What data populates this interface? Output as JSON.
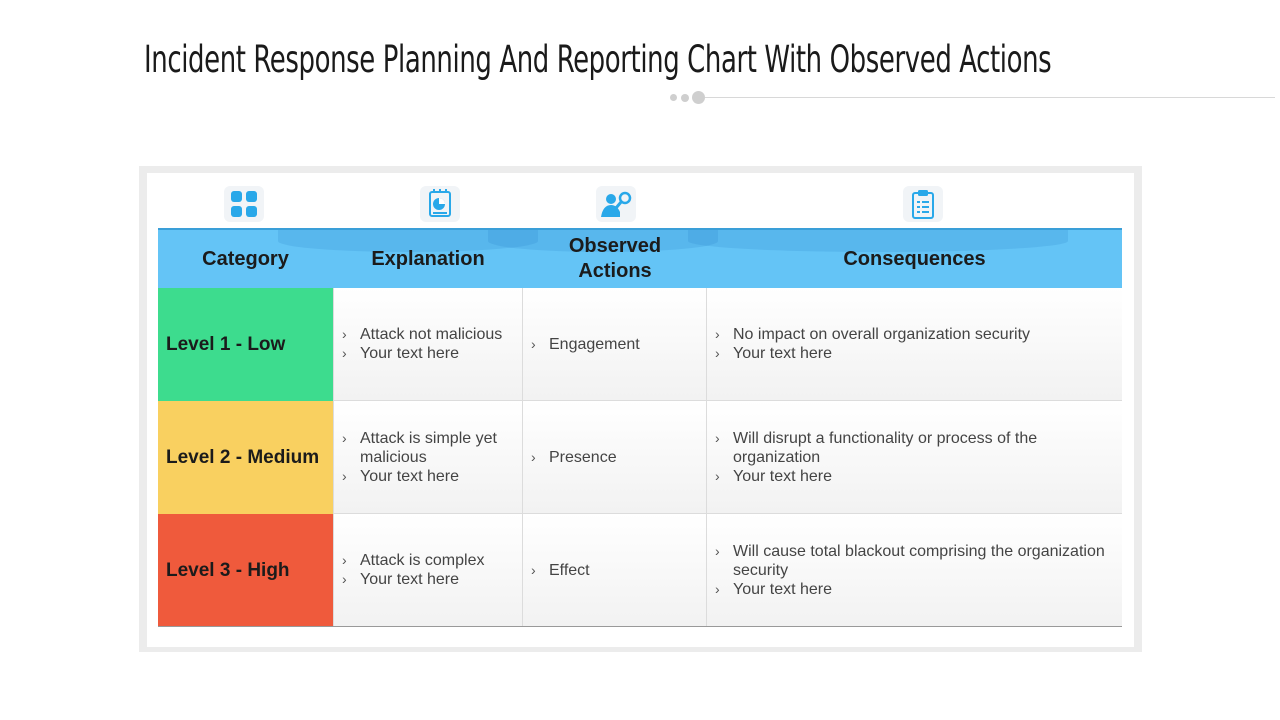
{
  "title": "Incident Response Planning And Reporting Chart With Observed Actions",
  "colors": {
    "header": "#64c4f6",
    "low": "#3ddc8e",
    "medium": "#f9d060",
    "high": "#ef5a3c",
    "icon": "#29a8e9"
  },
  "headers": [
    "Category",
    "Explanation",
    "Observed Actions",
    "Consequences"
  ],
  "icons": [
    "apps-grid-icon",
    "report-chart-icon",
    "user-search-icon",
    "clipboard-list-icon"
  ],
  "rows": [
    {
      "category": "Level 1 - Low",
      "explanation": [
        "Attack not malicious",
        "Your text here"
      ],
      "action": [
        "Engagement"
      ],
      "consequences": [
        "No impact on overall organization security",
        "Your text here"
      ]
    },
    {
      "category": "Level 2 - Medium",
      "explanation": [
        "Attack is simple yet malicious",
        "Your text here"
      ],
      "action": [
        "Presence"
      ],
      "consequences": [
        "Will disrupt a functionality  or process of the organization",
        "Your text here"
      ]
    },
    {
      "category": "Level 3 - High",
      "explanation": [
        "Attack is complex",
        "Your text here"
      ],
      "action": [
        "Effect"
      ],
      "consequences": [
        "Will cause total blackout comprising the organization security",
        "Your text here"
      ]
    }
  ]
}
